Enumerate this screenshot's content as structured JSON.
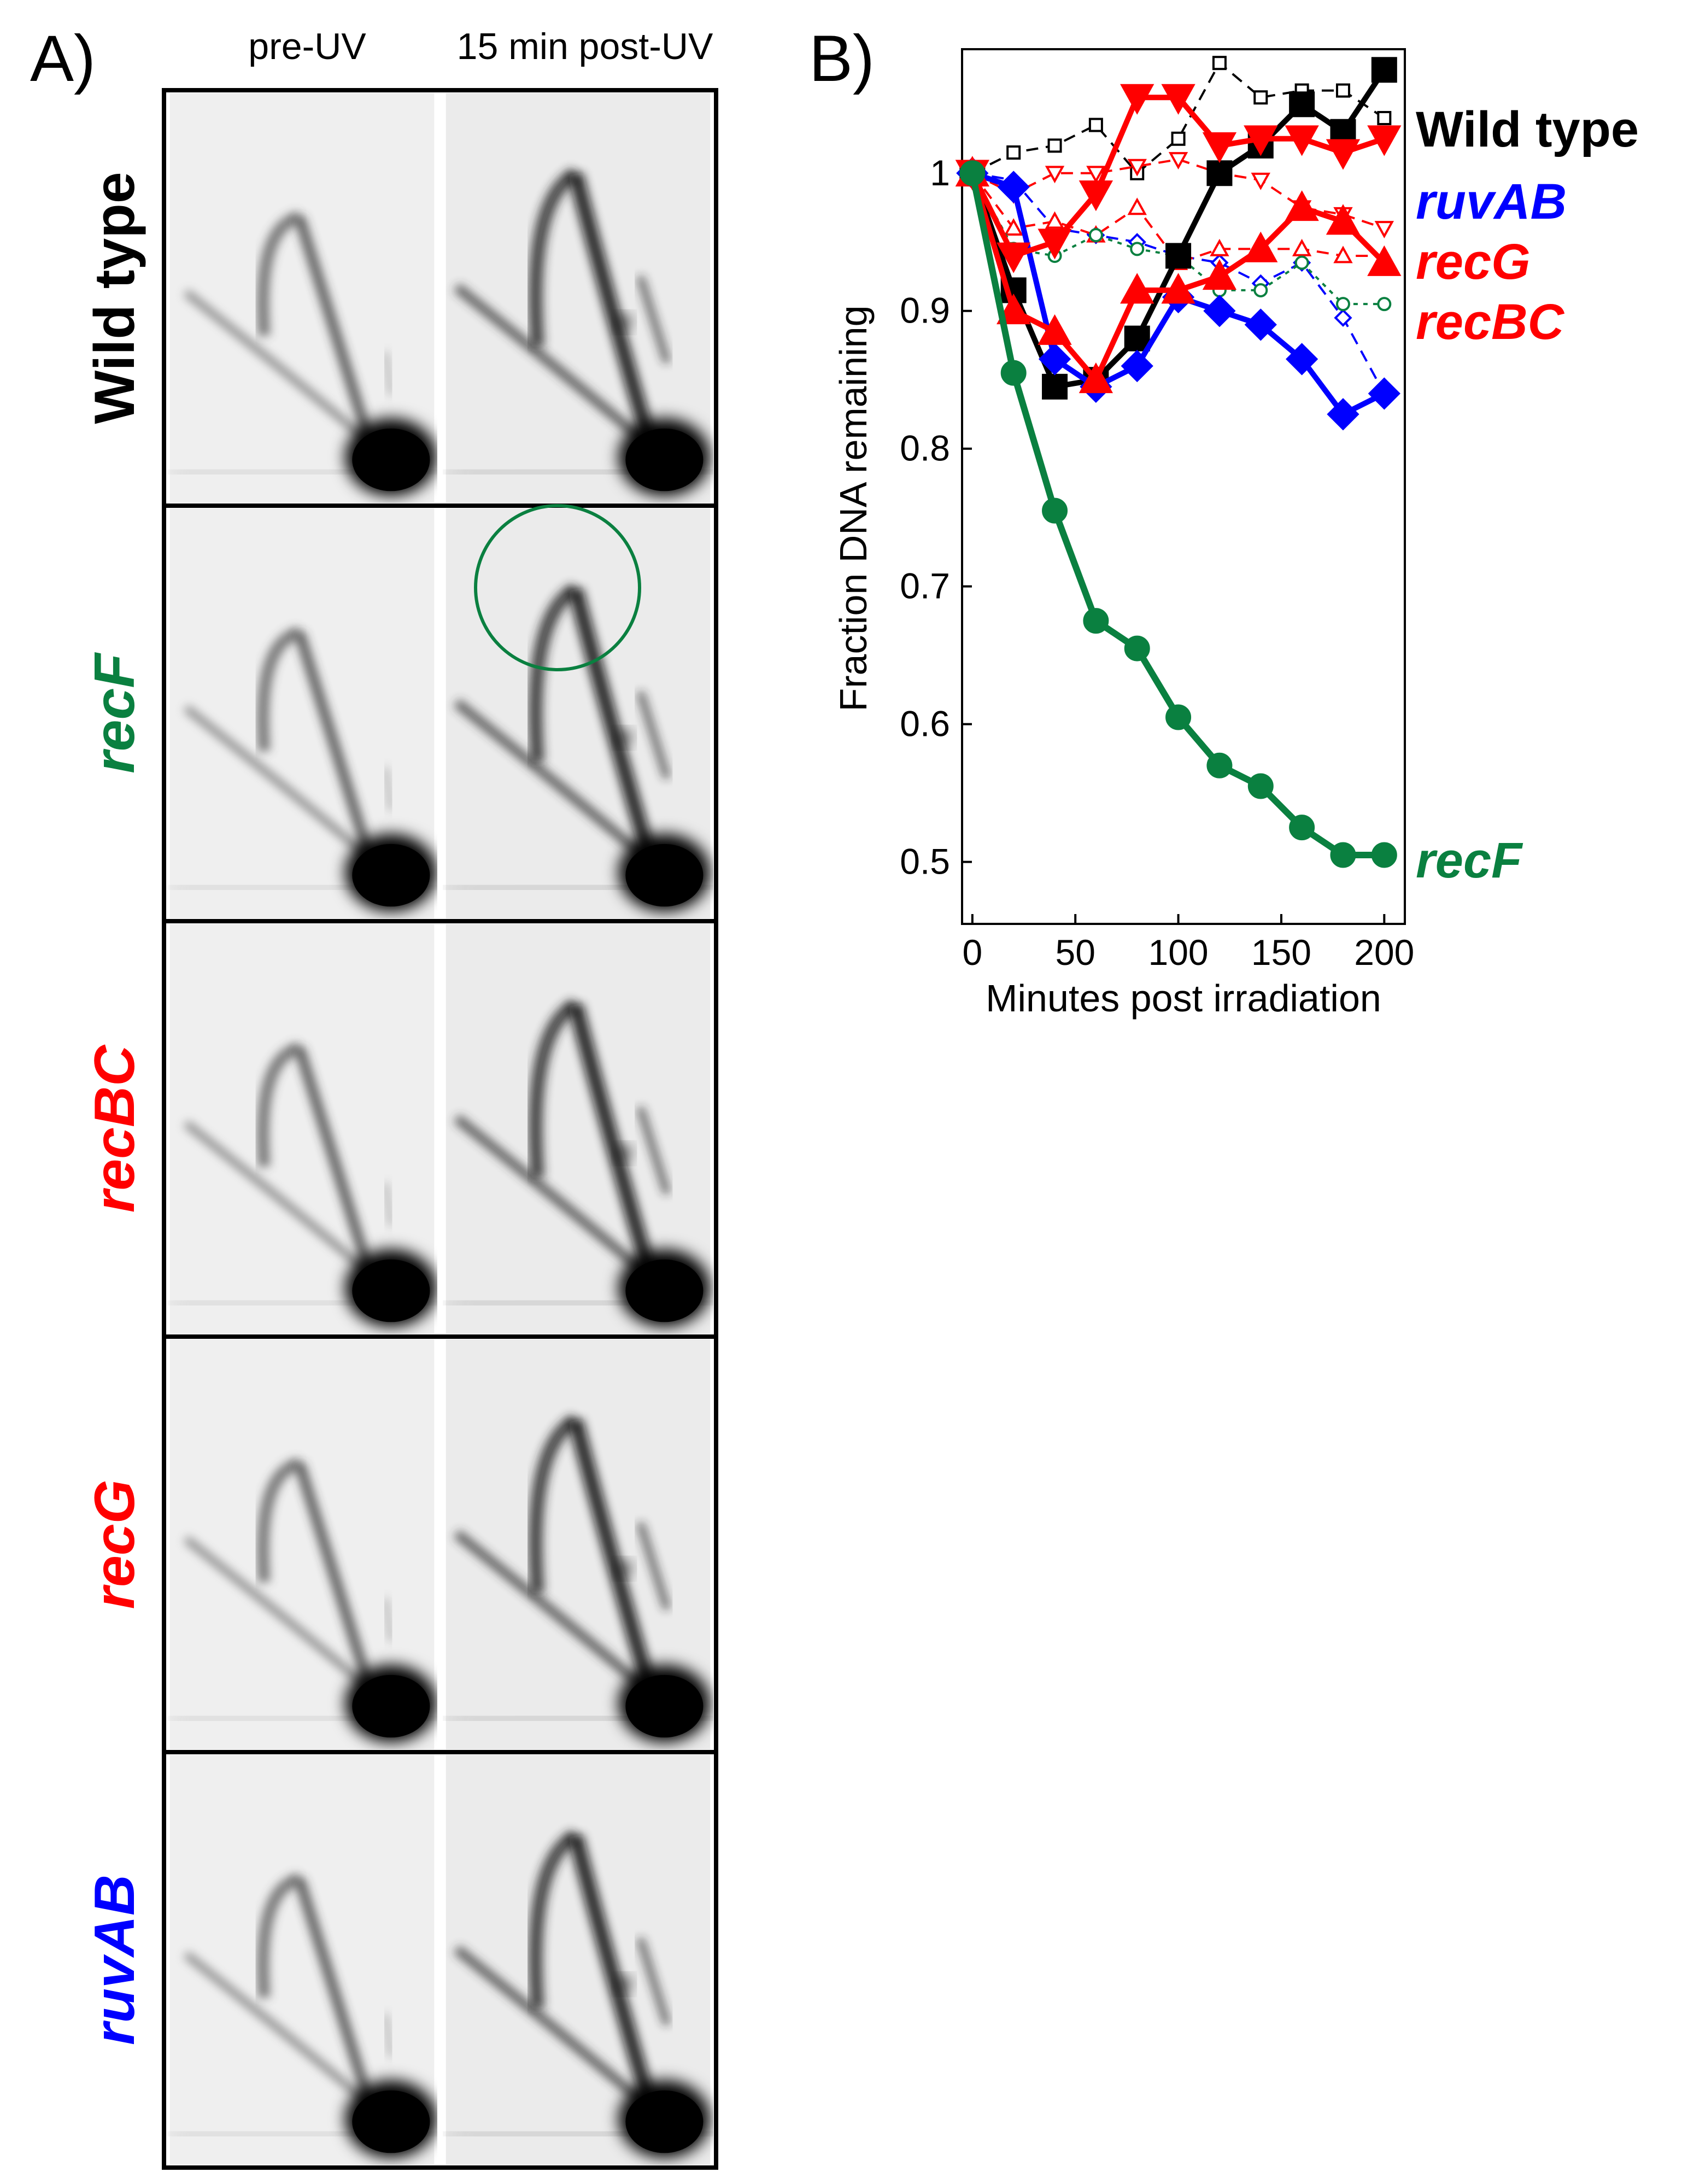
{
  "panel_a": {
    "label": "A)",
    "columns": [
      "pre-UV",
      "15 min post-UV"
    ],
    "rows": [
      {
        "strain": "Wild type",
        "color": "#000000"
      },
      {
        "strain": "recF",
        "color": "#0a8040"
      },
      {
        "strain": "recBC",
        "color": "#ff0000"
      },
      {
        "strain": "recG",
        "color": "#ff0000"
      },
      {
        "strain": "ruvAB",
        "color": "#0000ff"
      }
    ],
    "highlight_color": "#0a8040"
  },
  "panel_b": {
    "label": "B)"
  },
  "chart_data": {
    "type": "line",
    "title": "",
    "xlabel": "Minutes post irradiation",
    "ylabel": "Fraction DNA remaining",
    "xlim": [
      -5,
      210
    ],
    "ylim": [
      0.455,
      1.09
    ],
    "xticks": [
      0,
      50,
      100,
      150,
      200
    ],
    "yticks": [
      0.5,
      0.6,
      0.7,
      0.8,
      0.9,
      1
    ],
    "ytick_labels": [
      "0.5",
      "0.6",
      "0.7",
      "0.8",
      "0.9",
      "1"
    ],
    "legend": [
      {
        "label": "Wild type",
        "color": "#000000",
        "weight": "bold",
        "italic": false
      },
      {
        "label": "ruvAB",
        "color": "#0000ff",
        "weight": "bold",
        "italic": true
      },
      {
        "label": "recG",
        "color": "#ff0000",
        "weight": "bold",
        "italic": true
      },
      {
        "label": "recBC",
        "color": "#ff0000",
        "weight": "bold",
        "italic": true
      },
      {
        "label": "recF",
        "color": "#0a8040",
        "weight": "bold",
        "italic": true
      }
    ],
    "series": [
      {
        "name": "Wild type (dashed)",
        "color": "#000000",
        "marker": "square",
        "filled": false,
        "dash": true,
        "x": [
          0,
          20,
          40,
          60,
          80,
          100,
          120,
          140,
          160,
          180,
          200
        ],
        "y": [
          1.0,
          1.015,
          1.02,
          1.035,
          1.0,
          1.025,
          1.08,
          1.055,
          1.06,
          1.06,
          1.04
        ]
      },
      {
        "name": "ruvAB (dashed)",
        "color": "#0000ff",
        "marker": "diamond",
        "filled": false,
        "dash": true,
        "x": [
          0,
          20,
          40,
          60,
          80,
          100,
          120,
          140,
          160,
          180,
          200
        ],
        "y": [
          1.0,
          0.995,
          0.96,
          0.955,
          0.95,
          0.94,
          0.935,
          0.92,
          0.935,
          0.895,
          0.84
        ]
      },
      {
        "name": "recG (dashed)",
        "color": "#ff0000",
        "marker": "triangle-down",
        "filled": false,
        "dash": true,
        "x": [
          0,
          20,
          40,
          60,
          80,
          100,
          120,
          140,
          160,
          180,
          200
        ],
        "y": [
          1.0,
          0.985,
          1.0,
          1.0,
          1.005,
          1.01,
          1.0,
          0.995,
          0.975,
          0.97,
          0.96
        ]
      },
      {
        "name": "recBC (dashed)",
        "color": "#ff0000",
        "marker": "triangle-up",
        "filled": false,
        "dash": true,
        "x": [
          0,
          20,
          40,
          60,
          80,
          100,
          120,
          140,
          160,
          180,
          200
        ],
        "y": [
          1.0,
          0.96,
          0.965,
          0.955,
          0.975,
          0.935,
          0.945,
          0.945,
          0.945,
          0.94,
          0.94
        ]
      },
      {
        "name": "recF (dashed)",
        "color": "#0a8040",
        "marker": "circle",
        "filled": false,
        "dash": true,
        "x": [
          0,
          20,
          40,
          60,
          80,
          100,
          120,
          140,
          160,
          180,
          200
        ],
        "y": [
          1.0,
          0.945,
          0.94,
          0.955,
          0.945,
          0.94,
          0.915,
          0.915,
          0.935,
          0.905,
          0.905
        ]
      },
      {
        "name": "Wild type",
        "color": "#000000",
        "marker": "square",
        "filled": true,
        "dash": false,
        "x": [
          0,
          20,
          40,
          60,
          80,
          100,
          120,
          140,
          160,
          180,
          200
        ],
        "y": [
          1.0,
          0.915,
          0.845,
          0.85,
          0.88,
          0.94,
          1.0,
          1.02,
          1.05,
          1.03,
          1.075
        ]
      },
      {
        "name": "ruvAB",
        "color": "#0000ff",
        "marker": "diamond",
        "filled": true,
        "dash": false,
        "x": [
          0,
          20,
          40,
          60,
          80,
          100,
          120,
          140,
          160,
          180,
          200
        ],
        "y": [
          1.0,
          0.99,
          0.865,
          0.845,
          0.86,
          0.91,
          0.9,
          0.89,
          0.865,
          0.825,
          0.84
        ]
      },
      {
        "name": "recG",
        "color": "#ff0000",
        "marker": "triangle-down",
        "filled": true,
        "dash": false,
        "x": [
          0,
          20,
          40,
          60,
          80,
          100,
          120,
          140,
          160,
          180,
          200
        ],
        "y": [
          1.0,
          0.94,
          0.95,
          0.985,
          1.055,
          1.055,
          1.02,
          1.025,
          1.025,
          1.015,
          1.025
        ]
      },
      {
        "name": "recBC",
        "color": "#ff0000",
        "marker": "triangle-up",
        "filled": true,
        "dash": false,
        "x": [
          0,
          20,
          40,
          60,
          80,
          100,
          120,
          140,
          160,
          180,
          200
        ],
        "y": [
          1.0,
          0.9,
          0.885,
          0.85,
          0.915,
          0.915,
          0.925,
          0.945,
          0.975,
          0.965,
          0.935
        ]
      },
      {
        "name": "recF",
        "color": "#0a8040",
        "marker": "circle",
        "filled": true,
        "dash": false,
        "x": [
          0,
          20,
          40,
          60,
          80,
          100,
          120,
          140,
          160,
          180,
          200
        ],
        "y": [
          1.0,
          0.855,
          0.755,
          0.675,
          0.655,
          0.605,
          0.57,
          0.555,
          0.525,
          0.505,
          0.505
        ]
      }
    ]
  }
}
